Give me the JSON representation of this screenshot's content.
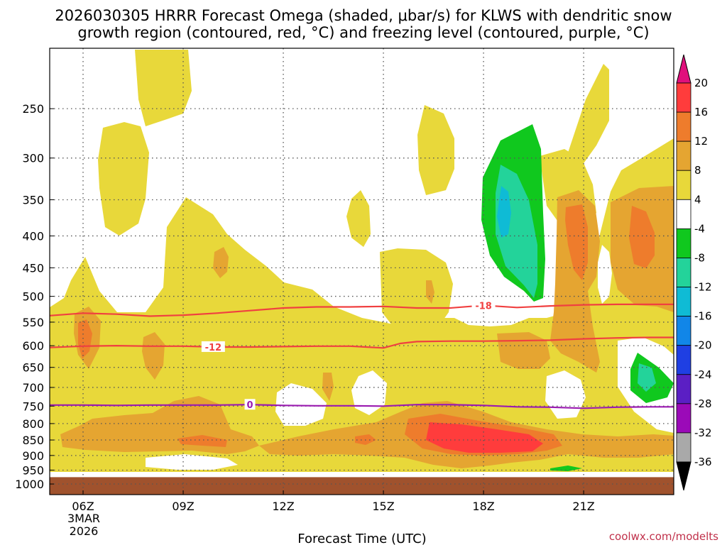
{
  "chart_data": {
    "type": "heatmap",
    "title_line1": "2026030305 HRRR Forecast Omega (shaded, μbar/s) for KLWS with dendritic snow",
    "title_line2": "growth region (contoured, red, °C) and freezing level (contoured, purple, °C)",
    "xlabel": "Forecast Time (UTC)",
    "date_label": [
      "3MAR",
      "2026"
    ],
    "credit": "coolwx.com/modelts",
    "x_range_hours": [
      5.0,
      23.7
    ],
    "y_range_hpa": [
      1040,
      200
    ],
    "x_ticks": [
      {
        "hour": 6,
        "label": "06Z"
      },
      {
        "hour": 9,
        "label": "09Z"
      },
      {
        "hour": 12,
        "label": "12Z"
      },
      {
        "hour": 15,
        "label": "15Z"
      },
      {
        "hour": 18,
        "label": "18Z"
      },
      {
        "hour": 21,
        "label": "21Z"
      }
    ],
    "y_ticks": [
      250,
      300,
      350,
      400,
      450,
      500,
      550,
      600,
      650,
      700,
      750,
      800,
      850,
      900,
      950,
      1000
    ],
    "y_tick_labels": [
      "250",
      "300",
      "350",
      "400",
      "450",
      "500",
      "550",
      "600",
      "650",
      "700",
      "750",
      "800",
      "850",
      "900",
      "950",
      "1000"
    ],
    "ground_top_hpa": 975,
    "colorbar": {
      "labels": [
        "20",
        "16",
        "12",
        "8",
        "4",
        "-4",
        "-8",
        "-12",
        "-16",
        "-20",
        "-24",
        "-28",
        "-32",
        "-36"
      ],
      "colors": [
        "#ff3c3c",
        "#ee7c2c",
        "#e5a531",
        "#e8d83a",
        "#ffffff",
        "#10c81e",
        "#23d39a",
        "#0fbbd5",
        "#1186e8",
        "#1f3fe3",
        "#5b1fc4",
        "#9b0ab8",
        "#a9a9a9"
      ],
      "top_arrow_color": "#e0107c",
      "bottom_arrow_color": "#000000"
    },
    "colors": {
      "yellow": "#e8d83a",
      "light_orange": "#e5a531",
      "orange": "#ee7c2c",
      "red": "#ff3c3c",
      "green": "#10c81e",
      "teal": "#23d39a",
      "cyan": "#0fbbd5",
      "ground": "#a0522d",
      "dgz_line": "#f04040",
      "freezing_line": "#9a1bb0"
    },
    "contours": [
      {
        "name": "dgz-minus18",
        "label": "-18",
        "label_hour": 18.0,
        "color": "#f04040",
        "points": [
          [
            5.0,
            537
          ],
          [
            6,
            532
          ],
          [
            7,
            534
          ],
          [
            8,
            538
          ],
          [
            9,
            536
          ],
          [
            10,
            532
          ],
          [
            11,
            527
          ],
          [
            12,
            522
          ],
          [
            13,
            520
          ],
          [
            14,
            520
          ],
          [
            15,
            519
          ],
          [
            16,
            522
          ],
          [
            17,
            522
          ],
          [
            18,
            517
          ],
          [
            19,
            521
          ],
          [
            20,
            518
          ],
          [
            21,
            516
          ],
          [
            22,
            515
          ],
          [
            23,
            515
          ],
          [
            23.7,
            515
          ]
        ]
      },
      {
        "name": "dgz-minus12",
        "label": "-12",
        "label_hour": 9.9,
        "color": "#f04040",
        "points": [
          [
            5.0,
            604
          ],
          [
            6,
            601
          ],
          [
            7,
            600
          ],
          [
            8,
            601
          ],
          [
            9,
            601
          ],
          [
            10,
            603
          ],
          [
            11,
            603
          ],
          [
            12,
            602
          ],
          [
            13,
            601
          ],
          [
            14,
            601
          ],
          [
            15,
            605
          ],
          [
            15.5,
            595
          ],
          [
            16,
            591
          ],
          [
            17,
            590
          ],
          [
            18,
            590
          ],
          [
            19,
            589
          ],
          [
            20,
            588
          ],
          [
            21,
            585
          ],
          [
            22,
            583
          ],
          [
            23,
            582
          ],
          [
            23.7,
            582
          ]
        ]
      },
      {
        "name": "freezing-level-0",
        "label": "0",
        "label_hour": 11.0,
        "color": "#9a1bb0",
        "points": [
          [
            5.0,
            747
          ],
          [
            6,
            747
          ],
          [
            7,
            748
          ],
          [
            8,
            747
          ],
          [
            9,
            747
          ],
          [
            10,
            747
          ],
          [
            11,
            746
          ],
          [
            12,
            748
          ],
          [
            13,
            749
          ],
          [
            14,
            749
          ],
          [
            15,
            750
          ],
          [
            16,
            746
          ],
          [
            17,
            746
          ],
          [
            18,
            748
          ],
          [
            19,
            752
          ],
          [
            20,
            753
          ],
          [
            21,
            756
          ],
          [
            22,
            753
          ],
          [
            23,
            752
          ],
          [
            23.7,
            752
          ]
        ]
      }
    ]
  }
}
